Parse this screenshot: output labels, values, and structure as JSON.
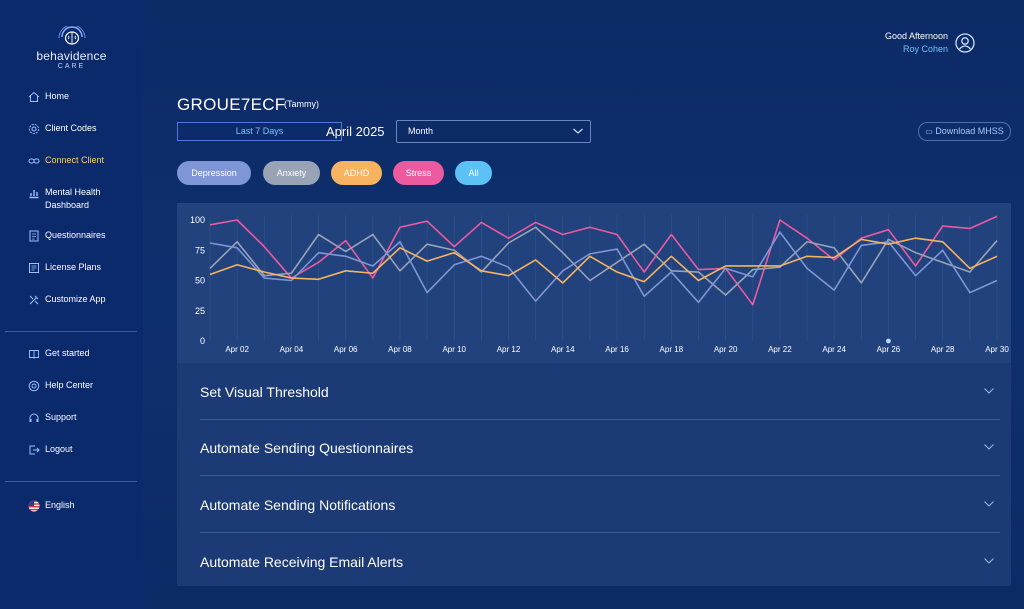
{
  "brand": {
    "name": "behavidence",
    "sub": "CARE"
  },
  "nav": {
    "items": [
      {
        "label": "Home",
        "icon": "home-icon"
      },
      {
        "label": "Client Codes",
        "icon": "gear-icon"
      },
      {
        "label": "Connect Client",
        "icon": "link-icon"
      },
      {
        "label": "Mental Health Dashboard",
        "icon": "dashboard-icon"
      },
      {
        "label": "Questionnaires",
        "icon": "questionnaire-icon"
      },
      {
        "label": "License Plans",
        "icon": "license-icon"
      },
      {
        "label": "Customize App",
        "icon": "customize-icon"
      }
    ],
    "help_items": [
      {
        "label": "Get started",
        "icon": "book-icon"
      },
      {
        "label": "Help Center",
        "icon": "help-icon"
      },
      {
        "label": "Support",
        "icon": "support-icon"
      },
      {
        "label": "Logout",
        "icon": "logout-icon"
      }
    ],
    "language": "English",
    "active": "Connect Client"
  },
  "header": {
    "greeting": "Good Afternoon",
    "user_name": "Roy Cohen"
  },
  "page": {
    "title": "GROUE7ECF",
    "subtitle": "(Tammy)",
    "range_button": "Last 7 Days",
    "period": "April 2025",
    "granularity": "Month",
    "download_label": "Download MHSS"
  },
  "filters": [
    {
      "label": "Depression",
      "color": "#7e95d6"
    },
    {
      "label": "Anxiety",
      "color": "#98a3b5"
    },
    {
      "label": "ADHD",
      "color": "#f7b35f"
    },
    {
      "label": "Stress",
      "color": "#ec5a9f"
    },
    {
      "label": "All",
      "color": "#5cc1f5"
    }
  ],
  "chart_data": {
    "type": "line",
    "ylim": [
      0,
      100
    ],
    "yticks": [
      "0",
      "25",
      "50",
      "75",
      "100"
    ],
    "xticks": [
      "Apr 02",
      "Apr 04",
      "Apr 06",
      "Apr 08",
      "Apr 10",
      "Apr 12",
      "Apr 14",
      "Apr 16",
      "Apr 18",
      "Apr 20",
      "Apr 22",
      "Apr 24",
      "Apr 26",
      "Apr 28",
      "Apr 30"
    ],
    "x": [
      1,
      2,
      3,
      4,
      5,
      6,
      7,
      8,
      9,
      10,
      11,
      12,
      13,
      14,
      15,
      16,
      17,
      18,
      19,
      20,
      21,
      22,
      23,
      24,
      25,
      26,
      27,
      28,
      29,
      30
    ],
    "series": [
      {
        "name": "Stress",
        "color": "#ec5a9f",
        "values": [
          96,
          100,
          78,
          52,
          65,
          83,
          52,
          94,
          99,
          78,
          98,
          85,
          98,
          88,
          94,
          88,
          57,
          88,
          59,
          60,
          30,
          100,
          85,
          67,
          85,
          92,
          62,
          95,
          93,
          103
        ]
      },
      {
        "name": "Anxiety",
        "color": "#98a3b5",
        "values": [
          60,
          82,
          54,
          56,
          88,
          74,
          88,
          58,
          80,
          75,
          57,
          81,
          94,
          73,
          50,
          65,
          80,
          58,
          57,
          38,
          59,
          61,
          82,
          77,
          48,
          84,
          73,
          65,
          57,
          83
        ]
      },
      {
        "name": "Depression",
        "color": "#7e95d6",
        "values": [
          81,
          77,
          52,
          50,
          73,
          70,
          62,
          82,
          40,
          63,
          70,
          61,
          33,
          58,
          72,
          76,
          37,
          57,
          32,
          60,
          53,
          90,
          60,
          42,
          79,
          82,
          54,
          75,
          40,
          50
        ]
      },
      {
        "name": "ADHD",
        "color": "#f7b35f",
        "values": [
          55,
          63,
          57,
          52,
          51,
          58,
          56,
          77,
          66,
          73,
          58,
          54,
          67,
          48,
          70,
          57,
          49,
          70,
          50,
          62,
          62,
          62,
          70,
          69,
          84,
          80,
          85,
          82,
          60,
          70
        ]
      }
    ],
    "marker_day": 26
  },
  "accordions": [
    {
      "title": "Set Visual Threshold"
    },
    {
      "title": "Automate Sending Questionnaires"
    },
    {
      "title": "Automate Sending Notifications"
    },
    {
      "title": "Automate Receiving Email Alerts"
    }
  ]
}
